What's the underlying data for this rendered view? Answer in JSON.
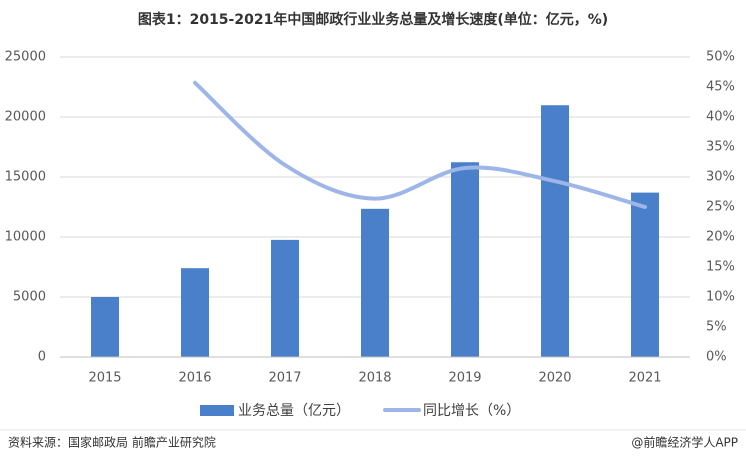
{
  "chart_data": {
    "type": "bar",
    "title": "图表1：2015-2021年中国邮政行业业务总量及增长速度(单位：亿元，%)",
    "categories": [
      "2015",
      "2016",
      "2017",
      "2018",
      "2019",
      "2020",
      "2021"
    ],
    "series": [
      {
        "name": "业务总量（亿元）",
        "type": "bar",
        "color": "#4a7fc9",
        "values": [
          5000,
          7400,
          9760,
          12350,
          16230,
          20980,
          13700
        ]
      },
      {
        "name": "同比增长（%）",
        "type": "line",
        "axis": "y2",
        "color": "#9db5e8",
        "values": [
          null,
          45.7,
          32.0,
          26.4,
          31.5,
          29.3,
          25.0
        ]
      }
    ],
    "ylim": [
      0,
      25000
    ],
    "yticks": [
      0,
      5000,
      10000,
      15000,
      20000,
      25000
    ],
    "y2lim": [
      0,
      50
    ],
    "y2ticks": [
      {
        "value": 0,
        "label": "0%"
      },
      {
        "value": 5,
        "label": "5%"
      },
      {
        "value": 10,
        "label": "10%"
      },
      {
        "value": 15,
        "label": "15%"
      },
      {
        "value": 20,
        "label": "20%"
      },
      {
        "value": 25,
        "label": "25%"
      },
      {
        "value": 30,
        "label": "30%"
      },
      {
        "value": 35,
        "label": "35%"
      },
      {
        "value": 40,
        "label": "40%"
      },
      {
        "value": 45,
        "label": "45%"
      },
      {
        "value": 50,
        "label": "50%"
      }
    ],
    "grid": true,
    "source": "资料来源：国家邮政局 前瞻产业研究院",
    "credit": "@前瞻经济学人APP"
  }
}
